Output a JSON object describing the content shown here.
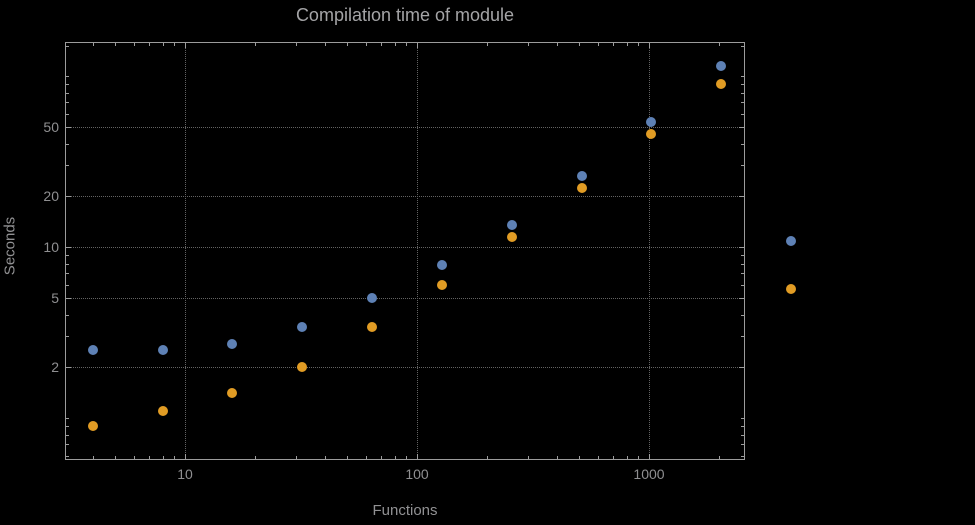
{
  "title": "Compilation time of module",
  "axes": {
    "xlabel": "Functions",
    "ylabel": "Seconds"
  },
  "colors": {
    "background": "#000000",
    "frame": "#9c9c9c",
    "grid": "#636363",
    "title_text": "#a4a4a6",
    "tick_text": "#8f8f91",
    "series_blue": "#5e81b5",
    "series_orange": "#e19c24"
  },
  "chart_data": {
    "type": "scatter",
    "title": "Compilation time of module",
    "xlabel": "Functions",
    "ylabel": "Seconds",
    "x_scale": "log",
    "y_scale": "log",
    "xlim": [
      3.05,
      2590
    ],
    "ylim": [
      0.57,
      157
    ],
    "grid": "dotted",
    "x": [
      4,
      8,
      16,
      32,
      64,
      128,
      256,
      512,
      1024,
      2048
    ],
    "series": [
      {
        "name": "series-blue",
        "color": "#5e81b5",
        "values": [
          2.5,
          2.5,
          2.7,
          3.4,
          5.0,
          7.9,
          13.5,
          26,
          54,
          115
        ]
      },
      {
        "name": "series-orange",
        "color": "#e19c24",
        "values": [
          0.9,
          1.1,
          1.4,
          2.0,
          3.4,
          6.0,
          11.5,
          22,
          46,
          90
        ]
      }
    ],
    "x_tick_values": [
      10,
      100,
      1000
    ],
    "x_tick_labels": [
      "10",
      "100",
      "1000"
    ],
    "y_tick_values": [
      2,
      5,
      10,
      20,
      50
    ],
    "y_tick_labels": [
      "2",
      "5",
      "10",
      "20",
      "50"
    ],
    "legend_position": "right"
  },
  "legend": {
    "markers": [
      {
        "name": "legend-marker-blue",
        "series": 0
      },
      {
        "name": "legend-marker-orange",
        "series": 1
      }
    ]
  }
}
